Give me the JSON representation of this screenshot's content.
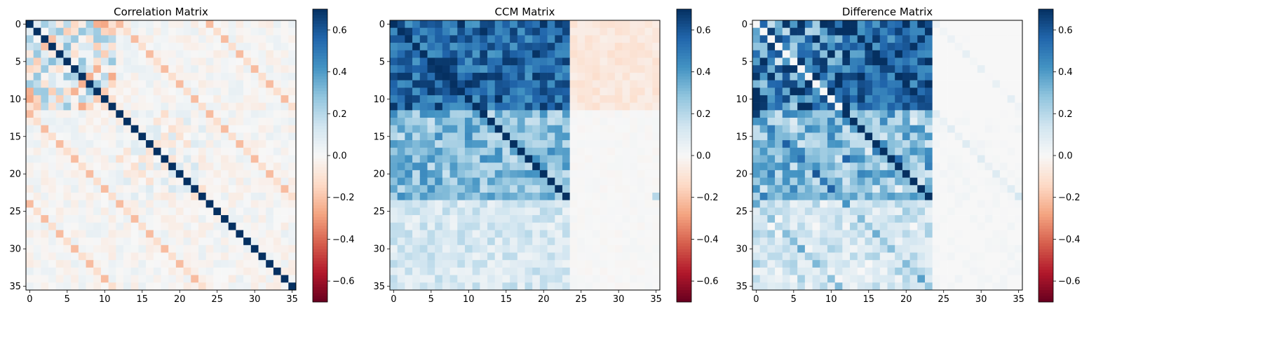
{
  "figure": {
    "panel_titles": [
      "Correlation Matrix",
      "CCM Matrix",
      "Difference Matrix"
    ]
  },
  "chart_data": [
    {
      "type": "heatmap",
      "title": "Correlation Matrix",
      "size": 36,
      "x_ticks": [
        0,
        5,
        10,
        15,
        20,
        25,
        30,
        35
      ],
      "y_ticks": [
        0,
        5,
        10,
        15,
        20,
        25,
        30,
        35
      ],
      "colormap": "RdBu",
      "vmin": -0.7,
      "vmax": 0.7,
      "colorbar_ticks": [
        -0.6,
        -0.4,
        -0.2,
        0.0,
        0.2,
        0.4,
        0.6
      ],
      "colorbar_tick_labels": [
        "−0.6",
        "−0.4",
        "−0.2",
        "0.0",
        "0.2",
        "0.4",
        "0.6"
      ],
      "notes": "diagonal = strong positive; bands at offsets 12 and 24; mostly near 0 elsewhere"
    },
    {
      "type": "heatmap",
      "title": "CCM Matrix",
      "size": 36,
      "x_ticks": [
        0,
        5,
        10,
        15,
        20,
        25,
        30,
        35
      ],
      "y_ticks": [
        0,
        5,
        10,
        15,
        20,
        25,
        30,
        35
      ],
      "colormap": "RdBu",
      "vmin": -0.7,
      "vmax": 0.7,
      "colorbar_ticks": [
        -0.6,
        -0.4,
        -0.2,
        0.0,
        0.2,
        0.4,
        0.6
      ],
      "colorbar_tick_labels": [
        "−0.6",
        "−0.4",
        "−0.2",
        "0.0",
        "0.2",
        "0.4",
        "0.6"
      ],
      "notes": "block 0-11 x 0-23 high (~0.55), rows 12-23 x cols 0-23 moderate (~0.3), rows 24-35 low (~0.1), cols 24-35 near 0 with slight negatives in top block"
    },
    {
      "type": "heatmap",
      "title": "Difference Matrix",
      "size": 36,
      "x_ticks": [
        0,
        5,
        10,
        15,
        20,
        25,
        30,
        35
      ],
      "y_ticks": [
        0,
        5,
        10,
        15,
        20,
        25,
        30,
        35
      ],
      "colormap": "RdBu",
      "vmin": -0.7,
      "vmax": 0.7,
      "colorbar_ticks": [
        -0.6,
        -0.4,
        -0.2,
        0.0,
        0.2,
        0.4,
        0.6
      ],
      "colorbar_tick_labels": [
        "−0.6",
        "−0.4",
        "−0.2",
        "0.0",
        "0.2",
        "0.4",
        "0.6"
      ],
      "notes": "CCM minus correlation clipped at 0; cols 24-35 ~0"
    }
  ]
}
